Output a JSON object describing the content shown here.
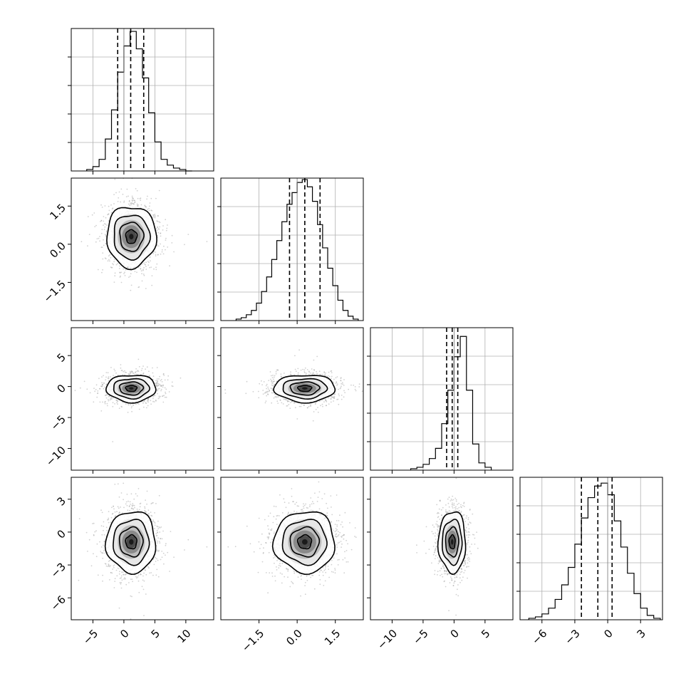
{
  "chart_data": {
    "type": "corner",
    "title": "",
    "params": [
      {
        "ticks": [
          -5,
          0,
          5,
          10
        ],
        "range": [
          -8.5,
          14.5
        ],
        "mean": 1.2,
        "sd": 2.0,
        "q16": -1.0,
        "q50": 1.1,
        "q84": 3.2,
        "truth": 0.0
      },
      {
        "ticks": [
          -1.5,
          0.0,
          1.5
        ],
        "ticklabels": [
          "−1.5",
          "0.0",
          "1.5"
        ],
        "range": [
          -3.0,
          2.6
        ],
        "mean": 0.3,
        "sd": 0.6,
        "q16": -0.3,
        "q50": 0.3,
        "q84": 0.9,
        "truth": 0.0
      },
      {
        "ticks": [
          -10,
          -5,
          0,
          5
        ],
        "range": [
          -13.5,
          9.5
        ],
        "mean": -0.3,
        "sd": 1.1,
        "q16": -1.2,
        "q50": -0.3,
        "q84": 0.6,
        "truth": 0.0
      },
      {
        "ticks": [
          -6,
          -3,
          0,
          3
        ],
        "range": [
          -8.0,
          5.0
        ],
        "mean": -0.9,
        "sd": 1.4,
        "q16": -2.4,
        "q50": -0.9,
        "q84": 0.4,
        "truth": 0.0
      }
    ],
    "histograms": [
      {
        "bins": [
          -6,
          -5,
          -4,
          -3,
          -2,
          -1,
          0,
          1,
          2,
          3,
          4,
          5,
          6,
          7,
          8,
          9,
          10
        ],
        "counts": [
          0.01,
          0.03,
          0.08,
          0.22,
          0.42,
          0.68,
          0.86,
          0.96,
          0.84,
          0.64,
          0.4,
          0.2,
          0.08,
          0.04,
          0.02,
          0.01,
          0.0
        ]
      },
      {
        "bins": [
          -2.4,
          -2.2,
          -2.0,
          -1.8,
          -1.6,
          -1.4,
          -1.2,
          -1.0,
          -0.8,
          -0.6,
          -0.4,
          -0.2,
          0.0,
          0.2,
          0.4,
          0.6,
          0.8,
          1.0,
          1.2,
          1.4,
          1.6,
          1.8,
          2.0,
          2.2,
          2.4
        ],
        "counts": [
          0.01,
          0.02,
          0.04,
          0.07,
          0.12,
          0.2,
          0.3,
          0.42,
          0.55,
          0.68,
          0.8,
          0.88,
          0.95,
          0.97,
          0.92,
          0.82,
          0.66,
          0.5,
          0.36,
          0.24,
          0.14,
          0.07,
          0.03,
          0.01
        ]
      },
      {
        "bins": [
          -7,
          -6,
          -5,
          -4,
          -3,
          -2,
          -1,
          0,
          1,
          2,
          3,
          4,
          5
        ],
        "counts": [
          0.01,
          0.02,
          0.04,
          0.08,
          0.15,
          0.32,
          0.55,
          0.78,
          0.92,
          0.55,
          0.18,
          0.05,
          0.02
        ]
      },
      {
        "bins": [
          -7.2,
          -6.6,
          -6.0,
          -5.4,
          -4.8,
          -4.2,
          -3.6,
          -3.0,
          -2.4,
          -1.8,
          -1.2,
          -0.6,
          0.0,
          0.6,
          1.2,
          1.8,
          2.4,
          3.0,
          3.6,
          4.2
        ],
        "counts": [
          0.01,
          0.02,
          0.04,
          0.08,
          0.14,
          0.24,
          0.36,
          0.52,
          0.7,
          0.84,
          0.92,
          0.94,
          0.86,
          0.68,
          0.5,
          0.32,
          0.18,
          0.08,
          0.03,
          0.01
        ]
      }
    ],
    "ylims": [
      [
        0,
        0.98
      ],
      [
        0,
        0.98
      ],
      [
        0,
        0.98
      ],
      [
        0,
        0.98
      ]
    ],
    "marginal_ticks_count": 5,
    "samples_per_panel": 1700,
    "grid": true,
    "legend": "none"
  }
}
